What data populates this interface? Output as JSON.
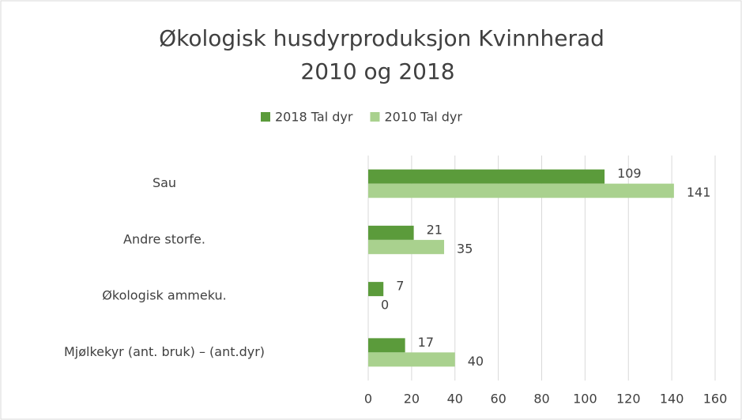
{
  "chart_data": {
    "type": "bar",
    "orientation": "horizontal",
    "title": [
      "Økologisk husdyrproduksjon Kvinnherad",
      "2010 og 2018"
    ],
    "categories": [
      "Sau",
      "Andre storfe.",
      "Økologisk ammeku.",
      "Mjølkekyr (ant. bruk) – (ant.dyr)"
    ],
    "series": [
      {
        "name": "2018 Tal dyr",
        "color": "#5b9b3b",
        "values": [
          109,
          21,
          7,
          17
        ]
      },
      {
        "name": "2010 Tal dyr",
        "color": "#a9d18e",
        "values": [
          141,
          35,
          0,
          40
        ]
      }
    ],
    "xlim": [
      0,
      160
    ],
    "xticks": [
      0,
      20,
      40,
      60,
      80,
      100,
      120,
      140,
      160
    ],
    "grid": true,
    "legend": "top"
  }
}
